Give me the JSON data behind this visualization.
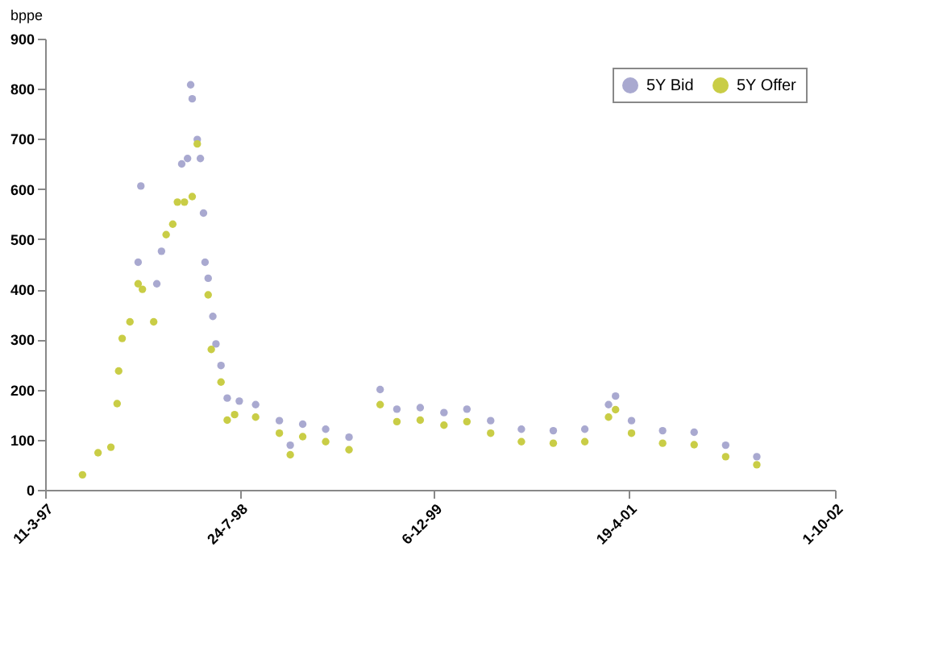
{
  "chart_data": {
    "type": "scatter",
    "ylabel": "bppe",
    "xlim": [
      "1997-03-11",
      "2002-10-01"
    ],
    "xticks": [
      {
        "value": "1997-03-11",
        "label": "11-3-97"
      },
      {
        "value": "1998-07-24",
        "label": "24-7-98"
      },
      {
        "value": "1999-12-06",
        "label": "6-12-99"
      },
      {
        "value": "2001-04-19",
        "label": "19-4-01"
      },
      {
        "value": "2002-10-01",
        "label": "1-10-02"
      }
    ],
    "ylim": [
      0,
      900
    ],
    "yticks": [
      0,
      100,
      200,
      300,
      400,
      500,
      600,
      700,
      800,
      900
    ],
    "grid": false,
    "legend": "top right",
    "marker": "circle",
    "series": [
      {
        "name": "5Y Bid",
        "color": "#a9a9d0",
        "x": [
          "1997-11-05",
          "1997-11-12",
          "1997-12-23",
          "1998-01-04",
          "1998-01-16",
          "1998-02-14",
          "1998-02-25",
          "1998-03-12",
          "1998-03-20",
          "1998-03-24",
          "1998-04-06",
          "1998-04-14",
          "1998-04-22",
          "1998-04-26",
          "1998-05-04",
          "1998-05-16",
          "1998-05-24",
          "1998-06-06",
          "1998-06-22",
          "1998-07-23",
          "1998-09-03",
          "1998-11-03",
          "1998-12-01",
          "1999-01-02",
          "1999-03-02",
          "1999-05-01",
          "1999-07-20",
          "1999-09-01",
          "1999-10-31",
          "1999-12-31",
          "2000-02-28",
          "2000-04-29",
          "2000-07-17",
          "2000-10-07",
          "2000-12-27",
          "2001-02-26",
          "2001-03-16",
          "2001-04-26",
          "2001-07-15",
          "2001-10-04",
          "2001-12-24",
          "2002-03-14"
        ],
        "values": [
          454,
          606,
          411,
          476,
          null,
          null,
          650,
          661,
          808,
          780,
          699,
          661,
          552,
          454,
          422,
          346,
          291,
          248,
          183,
          177,
          170,
          138,
          89,
          131,
          121,
          105,
          200,
          161,
          164,
          154,
          161,
          138,
          121,
          118,
          121,
          170,
          187,
          138,
          118,
          115,
          89,
          66
        ]
      },
      {
        "name": "5Y Offer",
        "color": "#c9cd46",
        "x": [
          "1997-06-15",
          "1997-07-25",
          "1997-08-27",
          "1997-09-12",
          "1997-09-16",
          "1997-09-25",
          "1997-10-15",
          "1997-11-05",
          "1997-11-16",
          "1997-12-15",
          "1998-01-16",
          "1998-02-02",
          "1998-02-14",
          "1998-03-04",
          "1998-03-24",
          "1998-04-06",
          "1998-05-04",
          "1998-05-12",
          "1998-06-06",
          "1998-06-22",
          "1998-07-11",
          "1998-09-03",
          "1998-11-03",
          "1998-12-01",
          "1999-01-02",
          "1999-03-02",
          "1999-05-01",
          "1999-07-20",
          "1999-09-01",
          "1999-10-31",
          "1999-12-31",
          "2000-02-28",
          "2000-04-29",
          "2000-07-17",
          "2000-10-07",
          "2000-12-27",
          "2001-02-26",
          "2001-03-16",
          "2001-04-26",
          "2001-07-15",
          "2001-10-04",
          "2001-12-24",
          "2002-03-14"
        ],
        "values": [
          30,
          74,
          85,
          172,
          237,
          302,
          335,
          411,
          400,
          335,
          509,
          530,
          574,
          574,
          585,
          690,
          389,
          280,
          215,
          139,
          150,
          145,
          113,
          70,
          106,
          96,
          80,
          170,
          136,
          139,
          129,
          136,
          113,
          96,
          93,
          96,
          145,
          160,
          113,
          93,
          90,
          66,
          50
        ]
      }
    ]
  }
}
